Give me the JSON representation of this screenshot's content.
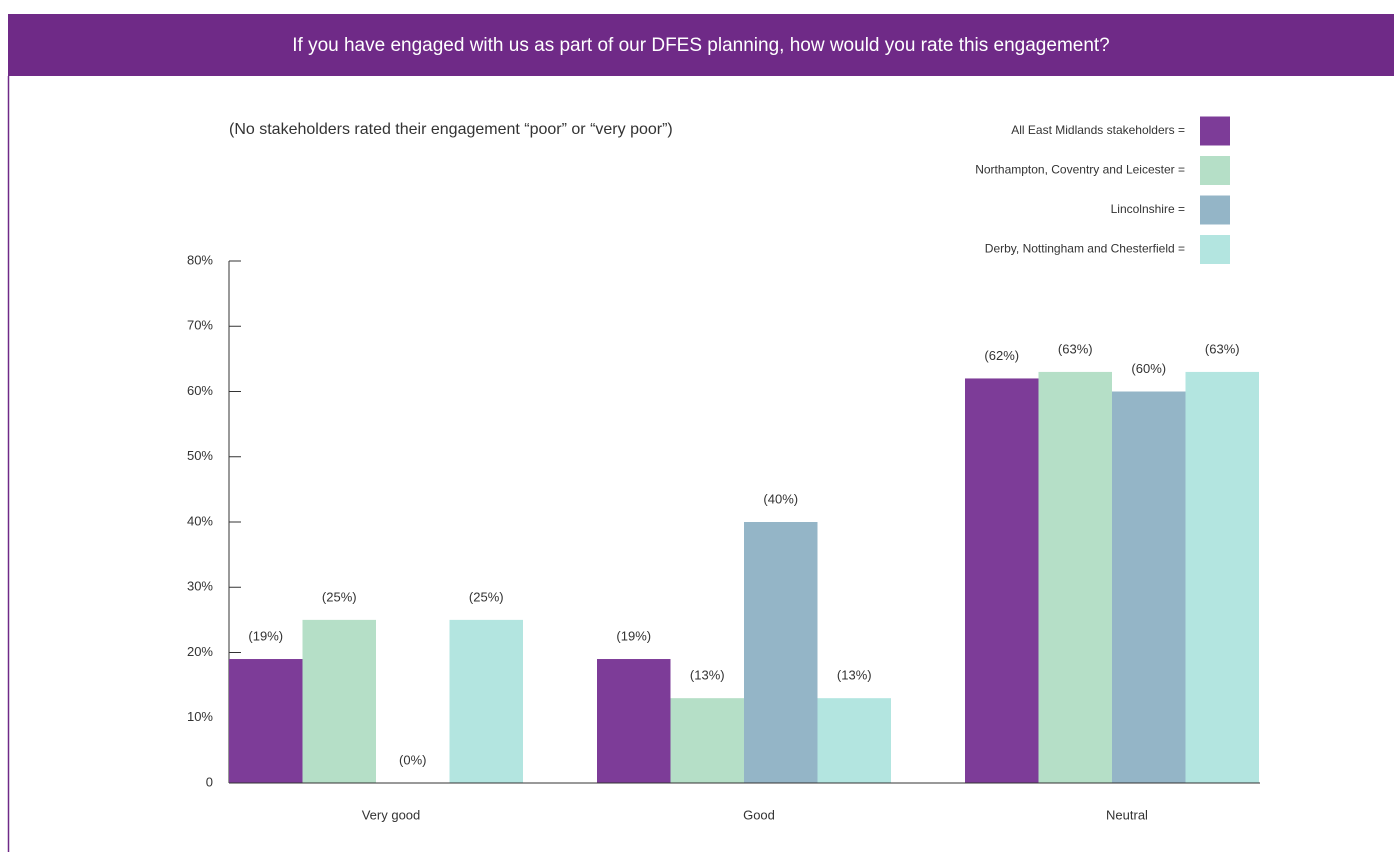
{
  "chart_data": {
    "type": "bar",
    "title": "If you have engaged with us as part of our DFES planning, how would you rate this engagement?",
    "subtitle": "(No stakeholders rated their engagement “poor” or “very poor”)",
    "categories": [
      "Very good",
      "Good",
      "Neutral"
    ],
    "series": [
      {
        "name": "All East Midlands stakeholders =",
        "color": "#7d3c98",
        "values": [
          19,
          19,
          62
        ],
        "value_labels": [
          "(19%)",
          "(19%)",
          "(62%)"
        ]
      },
      {
        "name": "Northampton, Coventry and Leicester =",
        "color": "#b5dfc7",
        "values": [
          25,
          13,
          63
        ],
        "value_labels": [
          "(25%)",
          "(13%)",
          "(63%)"
        ]
      },
      {
        "name": "Lincolnshire =",
        "color": "#94b5c7",
        "values": [
          0,
          40,
          60
        ],
        "value_labels": [
          "(0%)",
          "(40%)",
          "(60%)"
        ]
      },
      {
        "name": "Derby, Nottingham and Chesterfield =",
        "color": "#b3e5e0",
        "values": [
          25,
          13,
          63
        ],
        "value_labels": [
          "(25%)",
          "(13%)",
          "(63%)"
        ]
      }
    ],
    "ylim": [
      0,
      80
    ],
    "yticks": [
      0,
      {
        "value": 10,
        "label": "10%"
      },
      {
        "value": 20,
        "label": "20%"
      },
      {
        "value": 30,
        "label": "30%"
      },
      {
        "value": 40,
        "label": "40%"
      },
      {
        "value": 50,
        "label": "50%"
      },
      {
        "value": 60,
        "label": "60%"
      },
      {
        "value": 70,
        "label": "70%"
      },
      {
        "value": 80,
        "label": "80%"
      }
    ],
    "legend": "top-right"
  }
}
